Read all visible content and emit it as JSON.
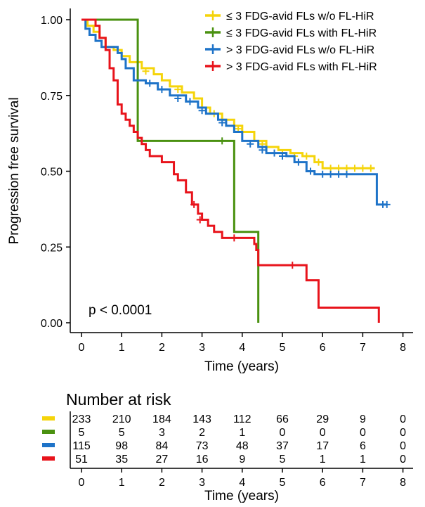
{
  "chart_data": {
    "type": "line",
    "subtype": "kaplan-meier",
    "xlabel": "Time (years)",
    "ylabel": "Progression free survival",
    "xlim": [
      -0.3,
      8.3
    ],
    "ylim": [
      0,
      1
    ],
    "xticks": [
      0,
      1,
      2,
      3,
      4,
      5,
      6,
      7,
      8
    ],
    "yticks": [
      0,
      0.25,
      0.5,
      0.75,
      1
    ],
    "ytick_labels": [
      "0.00",
      "0.25",
      "0.50",
      "0.75",
      "1.00"
    ],
    "grid": false,
    "legend_position": "top-right",
    "pvalue_text": "p < 0.0001",
    "series": [
      {
        "name": "≤ 3 FDG-avid FLs w/o FL-HiR",
        "color": "#F5D40A",
        "steps": [
          [
            0,
            1.0
          ],
          [
            0.15,
            0.98
          ],
          [
            0.3,
            0.96
          ],
          [
            0.45,
            0.94
          ],
          [
            0.6,
            0.91
          ],
          [
            0.8,
            0.9
          ],
          [
            1.0,
            0.88
          ],
          [
            1.2,
            0.86
          ],
          [
            1.5,
            0.84
          ],
          [
            1.8,
            0.82
          ],
          [
            2.0,
            0.8
          ],
          [
            2.2,
            0.78
          ],
          [
            2.5,
            0.76
          ],
          [
            2.8,
            0.74
          ],
          [
            3.0,
            0.71
          ],
          [
            3.2,
            0.69
          ],
          [
            3.5,
            0.67
          ],
          [
            3.8,
            0.65
          ],
          [
            4.0,
            0.63
          ],
          [
            4.3,
            0.6
          ],
          [
            4.6,
            0.58
          ],
          [
            4.9,
            0.57
          ],
          [
            5.2,
            0.56
          ],
          [
            5.5,
            0.55
          ],
          [
            5.8,
            0.53
          ],
          [
            6.0,
            0.51
          ],
          [
            7.3,
            0.51
          ]
        ],
        "censor": [
          [
            1.6,
            0.83
          ],
          [
            2.4,
            0.77
          ],
          [
            3.3,
            0.69
          ],
          [
            3.9,
            0.64
          ],
          [
            4.5,
            0.59
          ],
          [
            5.0,
            0.56
          ],
          [
            5.3,
            0.55
          ],
          [
            5.6,
            0.55
          ],
          [
            5.9,
            0.53
          ],
          [
            6.2,
            0.51
          ],
          [
            6.4,
            0.51
          ],
          [
            6.6,
            0.51
          ],
          [
            6.8,
            0.51
          ],
          [
            7.0,
            0.51
          ],
          [
            7.2,
            0.51
          ]
        ]
      },
      {
        "name": "≤ 3 FDG-avid FLs with FL-HiR",
        "color": "#4A9110",
        "steps": [
          [
            0,
            1.0
          ],
          [
            1.3,
            1.0
          ],
          [
            1.4,
            0.6
          ],
          [
            3.8,
            0.6
          ],
          [
            3.8,
            0.3
          ],
          [
            4.4,
            0.3
          ],
          [
            4.4,
            0.0
          ]
        ],
        "censor": [
          [
            3.5,
            0.6
          ]
        ]
      },
      {
        "name": "> 3 FDG-avid FLs w/o FL-HiR",
        "color": "#1E73C8",
        "steps": [
          [
            0,
            1.0
          ],
          [
            0.1,
            0.97
          ],
          [
            0.2,
            0.95
          ],
          [
            0.35,
            0.93
          ],
          [
            0.5,
            0.91
          ],
          [
            0.9,
            0.89
          ],
          [
            1.0,
            0.87
          ],
          [
            1.1,
            0.84
          ],
          [
            1.3,
            0.8
          ],
          [
            1.6,
            0.79
          ],
          [
            1.9,
            0.77
          ],
          [
            2.2,
            0.75
          ],
          [
            2.6,
            0.73
          ],
          [
            2.9,
            0.71
          ],
          [
            3.1,
            0.69
          ],
          [
            3.4,
            0.67
          ],
          [
            3.6,
            0.65
          ],
          [
            3.8,
            0.63
          ],
          [
            4.0,
            0.6
          ],
          [
            4.4,
            0.58
          ],
          [
            4.6,
            0.56
          ],
          [
            5.1,
            0.55
          ],
          [
            5.3,
            0.53
          ],
          [
            5.6,
            0.5
          ],
          [
            5.8,
            0.49
          ],
          [
            7.3,
            0.49
          ],
          [
            7.35,
            0.39
          ],
          [
            7.6,
            0.39
          ]
        ],
        "censor": [
          [
            1.7,
            0.79
          ],
          [
            2.0,
            0.77
          ],
          [
            2.4,
            0.74
          ],
          [
            2.7,
            0.73
          ],
          [
            3.0,
            0.7
          ],
          [
            3.5,
            0.66
          ],
          [
            4.2,
            0.59
          ],
          [
            4.5,
            0.57
          ],
          [
            4.8,
            0.56
          ],
          [
            5.0,
            0.55
          ],
          [
            5.4,
            0.53
          ],
          [
            5.7,
            0.5
          ],
          [
            6.0,
            0.49
          ],
          [
            6.2,
            0.49
          ],
          [
            6.4,
            0.49
          ],
          [
            6.6,
            0.49
          ],
          [
            7.5,
            0.39
          ],
          [
            7.6,
            0.39
          ]
        ]
      },
      {
        "name": "> 3 FDG-avid FLs with FL-HiR",
        "color": "#E8131B",
        "steps": [
          [
            0,
            1.0
          ],
          [
            0.35,
            0.98
          ],
          [
            0.45,
            0.94
          ],
          [
            0.6,
            0.9
          ],
          [
            0.7,
            0.84
          ],
          [
            0.8,
            0.8
          ],
          [
            0.9,
            0.72
          ],
          [
            1.0,
            0.69
          ],
          [
            1.1,
            0.67
          ],
          [
            1.2,
            0.65
          ],
          [
            1.3,
            0.63
          ],
          [
            1.4,
            0.61
          ],
          [
            1.5,
            0.59
          ],
          [
            1.6,
            0.57
          ],
          [
            1.7,
            0.55
          ],
          [
            2.0,
            0.53
          ],
          [
            2.3,
            0.49
          ],
          [
            2.4,
            0.47
          ],
          [
            2.6,
            0.43
          ],
          [
            2.75,
            0.39
          ],
          [
            2.9,
            0.36
          ],
          [
            3.0,
            0.34
          ],
          [
            3.15,
            0.32
          ],
          [
            3.3,
            0.3
          ],
          [
            3.5,
            0.28
          ],
          [
            4.3,
            0.26
          ],
          [
            4.35,
            0.24
          ],
          [
            4.4,
            0.19
          ],
          [
            5.6,
            0.14
          ],
          [
            5.9,
            0.05
          ],
          [
            7.4,
            0.05
          ],
          [
            7.4,
            0.0
          ]
        ],
        "censor": [
          [
            2.8,
            0.39
          ],
          [
            2.95,
            0.34
          ],
          [
            3.8,
            0.28
          ],
          [
            5.25,
            0.19
          ]
        ]
      }
    ]
  },
  "risk_table": {
    "title": "Number at risk",
    "xlabel": "Time (years)",
    "times": [
      0,
      1,
      2,
      3,
      4,
      5,
      6,
      7,
      8
    ],
    "rows": [
      {
        "color": "#F5D40A",
        "counts": [
          233,
          210,
          184,
          143,
          112,
          66,
          29,
          9,
          0
        ]
      },
      {
        "color": "#4A9110",
        "counts": [
          5,
          5,
          3,
          2,
          1,
          0,
          0,
          0,
          0
        ]
      },
      {
        "color": "#1E73C8",
        "counts": [
          115,
          98,
          84,
          73,
          48,
          37,
          17,
          6,
          0
        ]
      },
      {
        "color": "#E8131B",
        "counts": [
          51,
          35,
          27,
          16,
          9,
          5,
          1,
          1,
          0
        ]
      }
    ]
  }
}
